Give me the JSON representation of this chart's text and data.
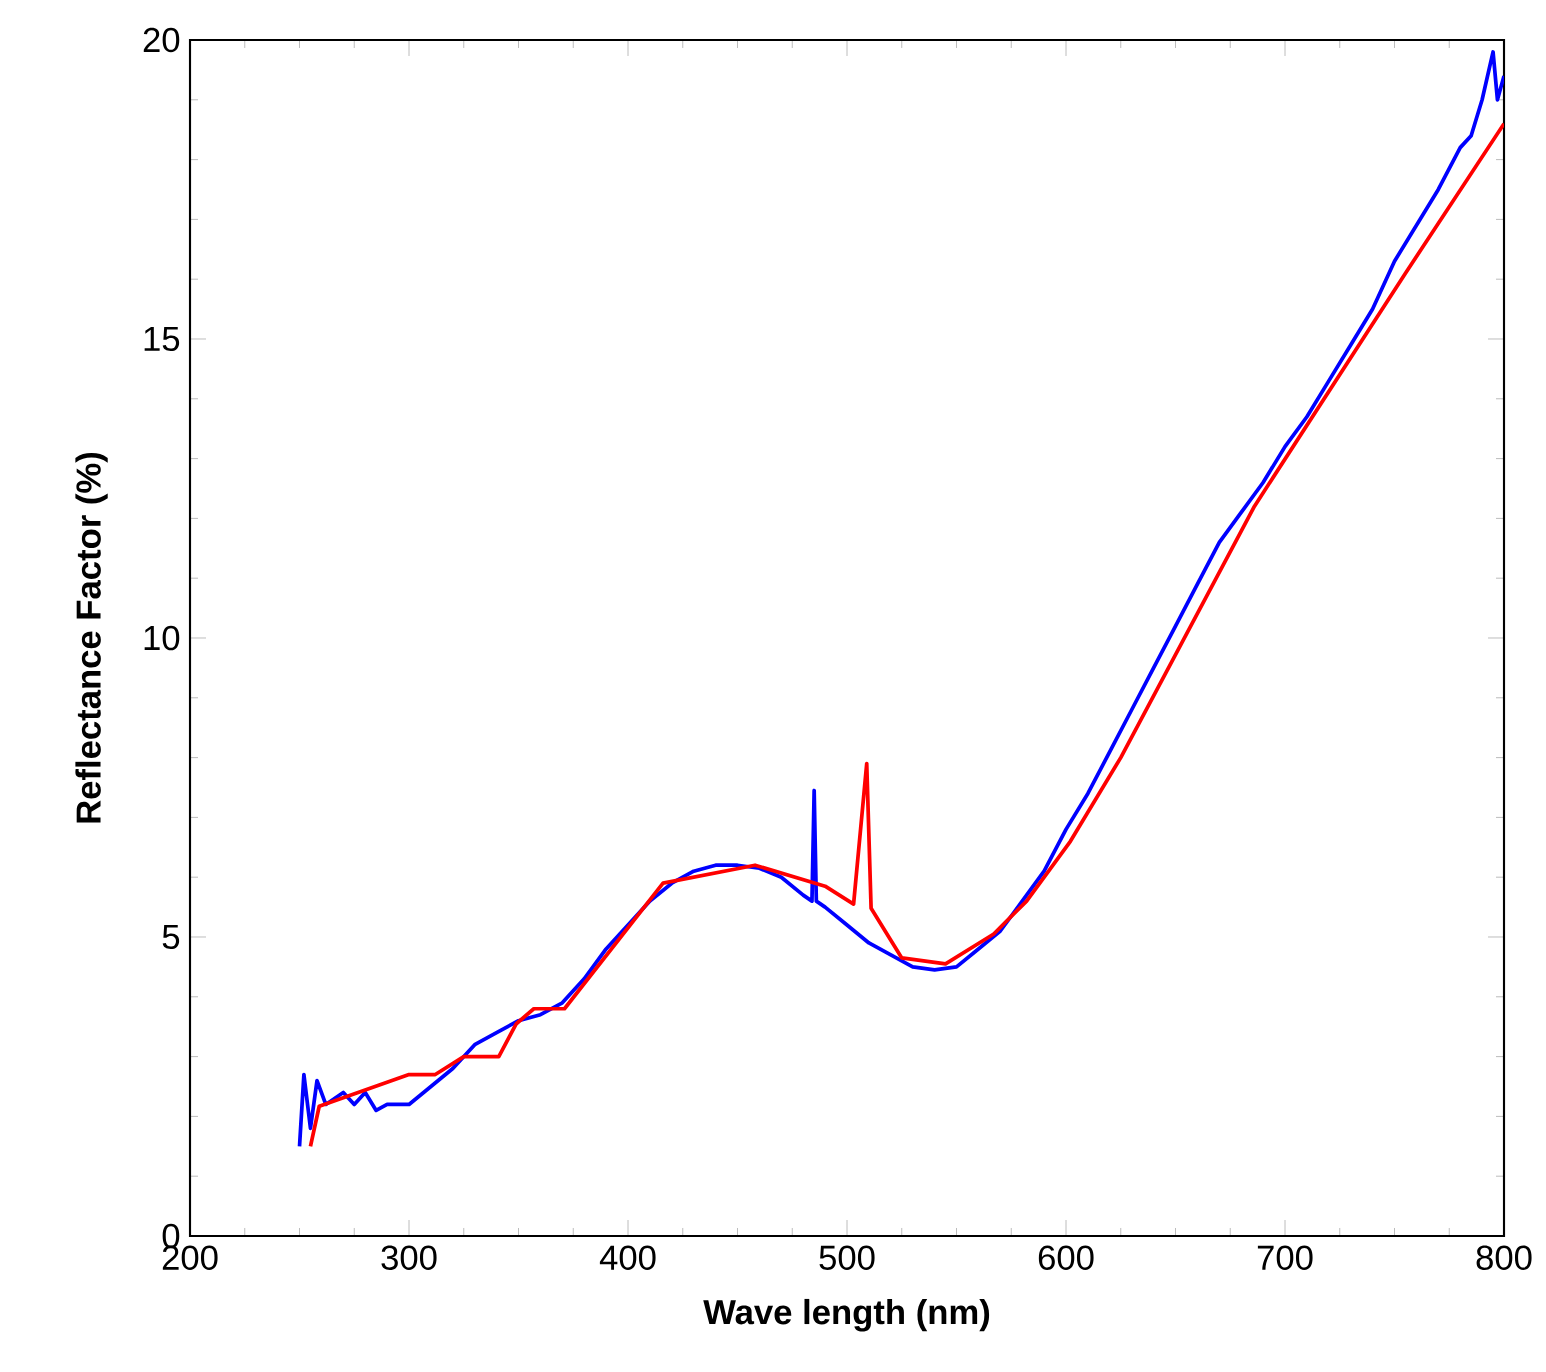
{
  "chart_data": {
    "type": "line",
    "xlabel": "Wave length (nm)",
    "ylabel": "Reflectance Factor (%)",
    "xlim": [
      200,
      800
    ],
    "ylim": [
      0,
      20
    ],
    "xticks": [
      200,
      300,
      400,
      500,
      600,
      700,
      800
    ],
    "yticks": [
      0,
      5,
      10,
      15,
      20
    ],
    "grid": false,
    "marker": "none",
    "line_style": "solid",
    "series": [
      {
        "color": "#0000ff",
        "x": [
          250,
          252,
          255,
          258,
          262,
          270,
          275,
          280,
          285,
          290,
          300,
          310,
          320,
          330,
          340,
          350,
          360,
          370,
          380,
          390,
          400,
          410,
          420,
          430,
          440,
          450,
          460,
          470,
          480,
          484,
          485,
          486,
          490,
          500,
          510,
          520,
          530,
          540,
          550,
          560,
          570,
          580,
          590,
          600,
          610,
          620,
          630,
          640,
          650,
          660,
          670,
          680,
          690,
          700,
          710,
          720,
          730,
          740,
          750,
          760,
          770,
          780,
          785,
          790,
          795,
          797,
          800
        ],
        "values": [
          1.5,
          2.7,
          1.8,
          2.6,
          2.2,
          2.4,
          2.2,
          2.4,
          2.1,
          2.2,
          2.2,
          2.5,
          2.8,
          3.2,
          3.4,
          3.6,
          3.7,
          3.9,
          4.3,
          4.8,
          5.2,
          5.6,
          5.9,
          6.1,
          6.2,
          6.2,
          6.15,
          6.0,
          5.7,
          5.6,
          7.45,
          5.6,
          5.5,
          5.2,
          4.9,
          4.7,
          4.5,
          4.45,
          4.5,
          4.8,
          5.1,
          5.6,
          6.1,
          6.8,
          7.4,
          8.1,
          8.8,
          9.5,
          10.2,
          10.9,
          11.6,
          12.1,
          12.6,
          13.2,
          13.7,
          14.3,
          14.9,
          15.5,
          16.3,
          16.9,
          17.5,
          18.2,
          18.4,
          19.0,
          19.8,
          19.0,
          19.4
        ]
      },
      {
        "color": "#ff0000",
        "x": [
          255,
          259,
          300,
          312,
          325,
          341,
          349,
          357,
          371,
          416,
          458,
          490,
          503,
          509,
          511,
          525,
          545,
          567,
          582,
          602,
          625,
          686,
          755,
          800
        ],
        "values": [
          1.5,
          2.17,
          2.7,
          2.7,
          3.0,
          3.0,
          3.55,
          3.8,
          3.8,
          5.9,
          6.2,
          5.85,
          5.55,
          7.9,
          5.48,
          4.65,
          4.55,
          5.05,
          5.6,
          6.6,
          8.0,
          12.2,
          16.1,
          18.6
        ]
      }
    ]
  }
}
